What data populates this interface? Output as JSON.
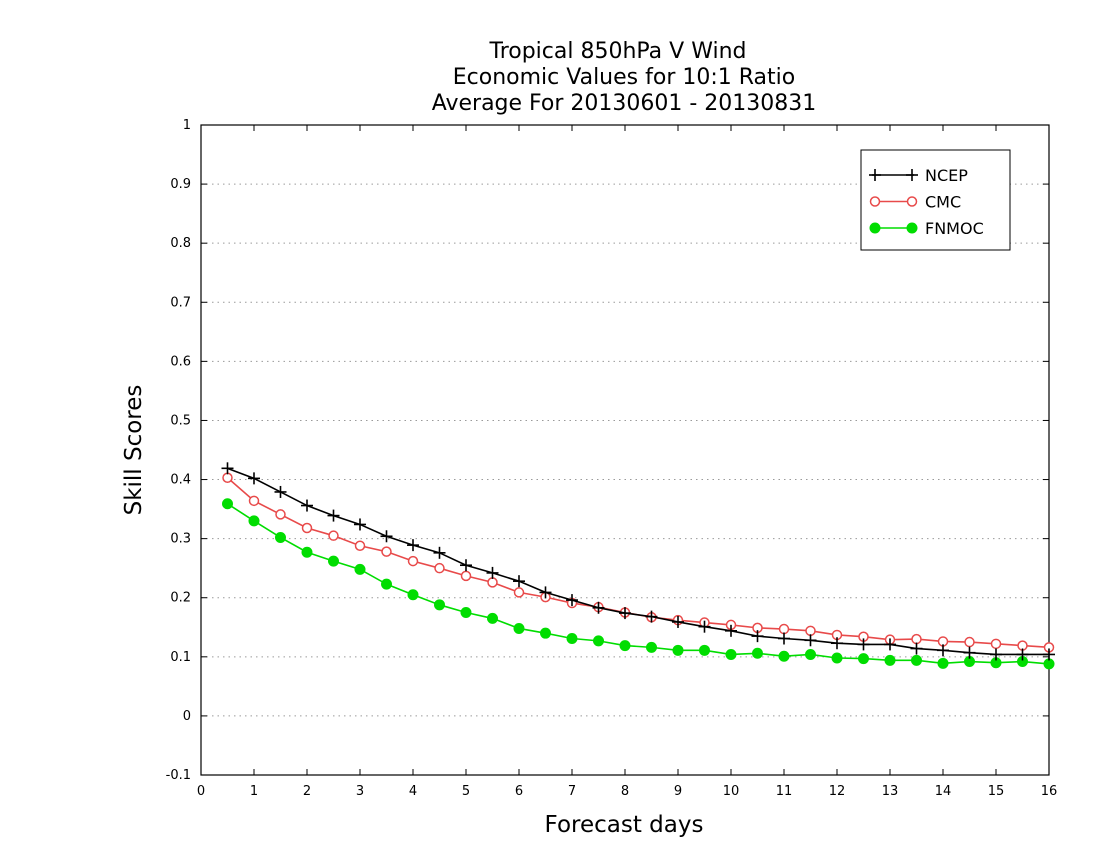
{
  "chart_data": {
    "type": "line",
    "title_lines": [
      "Tropical 850hPa V Wind",
      "Economic Values for 10:1 Ratio",
      "Average For 20130601 - 20130831"
    ],
    "xlabel": "Forecast days",
    "ylabel": "Skill Scores",
    "xlim": [
      0,
      16
    ],
    "ylim": [
      -0.1,
      1
    ],
    "x_ticks": [
      0,
      1,
      2,
      3,
      4,
      5,
      6,
      7,
      8,
      9,
      10,
      11,
      12,
      13,
      14,
      15,
      16
    ],
    "x_tick_labels": [
      "0",
      "1",
      "2",
      "3",
      "4",
      "5",
      "6",
      "7",
      "8",
      "9",
      "10",
      "11",
      "12",
      "13",
      "14",
      "15",
      "16"
    ],
    "y_ticks": [
      -0.1,
      0,
      0.1,
      0.2,
      0.3,
      0.4,
      0.5,
      0.6,
      0.7,
      0.8,
      0.9,
      1
    ],
    "y_tick_labels": [
      "-0.1",
      "0",
      "0.1",
      "0.2",
      "0.3",
      "0.4",
      "0.5",
      "0.6",
      "0.7",
      "0.8",
      "0.9",
      "1"
    ],
    "grid": "horizontal dotted",
    "legend_position": "top-right",
    "x": [
      0.5,
      1,
      1.5,
      2,
      2.5,
      3,
      3.5,
      4,
      4.5,
      5,
      5.5,
      6,
      6.5,
      7,
      7.5,
      8,
      8.5,
      9,
      9.5,
      10,
      10.5,
      11,
      11.5,
      12,
      12.5,
      13,
      13.5,
      14,
      14.5,
      15,
      15.5,
      16
    ],
    "series": [
      {
        "name": "NCEP",
        "color": "#000000",
        "marker": "plus",
        "values": [
          0.419,
          0.402,
          0.379,
          0.356,
          0.339,
          0.324,
          0.304,
          0.289,
          0.276,
          0.255,
          0.242,
          0.228,
          0.209,
          0.196,
          0.183,
          0.174,
          0.168,
          0.159,
          0.151,
          0.144,
          0.135,
          0.131,
          0.128,
          0.123,
          0.121,
          0.121,
          0.114,
          0.111,
          0.107,
          0.104,
          0.104,
          0.104
        ]
      },
      {
        "name": "CMC",
        "color": "#e84a4a",
        "marker": "open-circle",
        "values": [
          0.403,
          0.364,
          0.341,
          0.318,
          0.305,
          0.288,
          0.278,
          0.262,
          0.25,
          0.237,
          0.226,
          0.209,
          0.201,
          0.191,
          0.184,
          0.175,
          0.167,
          0.162,
          0.158,
          0.154,
          0.149,
          0.147,
          0.144,
          0.137,
          0.134,
          0.129,
          0.13,
          0.126,
          0.125,
          0.122,
          0.119,
          0.116
        ]
      },
      {
        "name": "FNMOC",
        "color": "#00dd00",
        "marker": "filled-circle",
        "values": [
          0.359,
          0.33,
          0.302,
          0.277,
          0.262,
          0.248,
          0.223,
          0.205,
          0.188,
          0.175,
          0.165,
          0.148,
          0.14,
          0.131,
          0.127,
          0.119,
          0.116,
          0.111,
          0.111,
          0.104,
          0.106,
          0.101,
          0.104,
          0.098,
          0.097,
          0.094,
          0.094,
          0.089,
          0.092,
          0.09,
          0.092,
          0.088
        ]
      }
    ]
  }
}
